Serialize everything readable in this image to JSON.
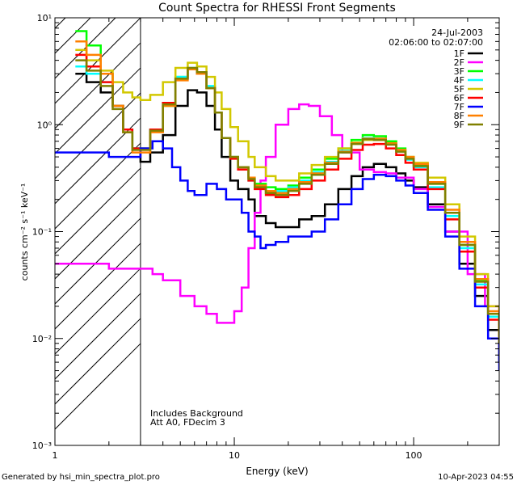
{
  "chart_data": {
    "type": "line",
    "title": "Count Spectra for RHESSI Front Segments",
    "xlabel": "Energy (keV)",
    "ylabel": "counts cm⁻² s⁻¹ keV⁻¹",
    "xscale": "log",
    "yscale": "log",
    "xlim": [
      1,
      300
    ],
    "ylim": [
      0.001,
      10
    ],
    "x_tick_labels": [
      "1",
      "10",
      "100"
    ],
    "y_tick_labels": [
      "10⁻³",
      "10⁻²",
      "10⁻¹",
      "10⁰",
      "10¹"
    ],
    "shaded_region": {
      "from": 1,
      "to": 3,
      "style": "diagonal hatch"
    },
    "vertical_line_x": 3,
    "date": "24-Jul-2003",
    "time_range": "02:06:00 to 02:07:00",
    "legend_position": "top-right",
    "annotations": [
      "Includes Background",
      "Att A0, FDecim 3"
    ],
    "series": [
      {
        "name": "1F",
        "color": "#000000",
        "x": [
          1.3,
          1.5,
          1.8,
          2.1,
          2.4,
          2.7,
          3.0,
          3.4,
          4.0,
          4.7,
          5.5,
          6.2,
          7.0,
          7.8,
          8.5,
          9.5,
          10.5,
          12,
          13,
          15,
          17,
          20,
          23,
          27,
          32,
          38,
          45,
          52,
          60,
          70,
          80,
          90,
          100,
          120,
          150,
          180,
          220,
          260,
          300
        ],
        "y": [
          3.0,
          2.5,
          2.0,
          1.5,
          0.9,
          0.6,
          0.45,
          0.55,
          0.8,
          1.5,
          2.1,
          2.0,
          1.5,
          0.9,
          0.5,
          0.3,
          0.25,
          0.2,
          0.14,
          0.12,
          0.11,
          0.11,
          0.13,
          0.14,
          0.18,
          0.25,
          0.33,
          0.4,
          0.43,
          0.4,
          0.35,
          0.3,
          0.26,
          0.18,
          0.1,
          0.05,
          0.025,
          0.012,
          0.006
        ]
      },
      {
        "name": "2F",
        "color": "#ff00ff",
        "x": [
          1.0,
          1.5,
          2.0,
          2.5,
          3.0,
          3.5,
          4.0,
          5.0,
          6.0,
          7.0,
          8.0,
          9.0,
          10.0,
          11.0,
          12.0,
          13.0,
          14.0,
          15.0,
          17.0,
          20.0,
          23.0,
          26.0,
          30.0,
          35.0,
          40.0,
          50.0,
          60.0,
          70.0,
          80.0,
          100.0,
          120.0,
          150.0,
          200.0,
          250.0,
          300.0
        ],
        "y": [
          0.05,
          0.05,
          0.045,
          0.045,
          0.045,
          0.04,
          0.035,
          0.025,
          0.02,
          0.017,
          0.014,
          0.014,
          0.018,
          0.03,
          0.07,
          0.15,
          0.3,
          0.5,
          1.0,
          1.4,
          1.55,
          1.5,
          1.2,
          0.8,
          0.55,
          0.38,
          0.36,
          0.35,
          0.32,
          0.25,
          0.17,
          0.1,
          0.04,
          0.02,
          0.012
        ]
      },
      {
        "name": "3F",
        "color": "#00ff00",
        "x": [
          1.3,
          1.5,
          1.8,
          2.1,
          2.4,
          2.7,
          3.0,
          3.4,
          4.0,
          4.7,
          5.5,
          6.2,
          7.0,
          7.8,
          8.5,
          9.5,
          10.5,
          12,
          13,
          15,
          17,
          20,
          23,
          27,
          32,
          38,
          45,
          52,
          60,
          70,
          80,
          90,
          100,
          120,
          150,
          180,
          220,
          260,
          300
        ],
        "y": [
          7.5,
          5.5,
          3.0,
          1.5,
          0.9,
          0.6,
          0.6,
          0.9,
          1.5,
          2.8,
          3.3,
          3.0,
          2.2,
          1.3,
          0.75,
          0.5,
          0.4,
          0.32,
          0.28,
          0.26,
          0.25,
          0.27,
          0.32,
          0.38,
          0.48,
          0.6,
          0.72,
          0.8,
          0.78,
          0.7,
          0.6,
          0.5,
          0.42,
          0.28,
          0.15,
          0.075,
          0.035,
          0.017,
          0.009
        ]
      },
      {
        "name": "4F",
        "color": "#00ffff",
        "x": [
          1.3,
          1.5,
          1.8,
          2.1,
          2.4,
          2.7,
          3.0,
          3.4,
          4.0,
          4.7,
          5.5,
          6.2,
          7.0,
          7.8,
          8.5,
          9.5,
          10.5,
          12,
          13,
          15,
          17,
          20,
          23,
          27,
          32,
          38,
          45,
          52,
          60,
          70,
          80,
          90,
          100,
          120,
          150,
          180,
          220,
          260,
          300
        ],
        "y": [
          3.5,
          3.0,
          2.5,
          1.5,
          0.9,
          0.6,
          0.6,
          0.9,
          1.6,
          2.8,
          3.4,
          3.1,
          2.3,
          1.3,
          0.75,
          0.5,
          0.4,
          0.3,
          0.26,
          0.24,
          0.24,
          0.26,
          0.3,
          0.36,
          0.45,
          0.57,
          0.68,
          0.75,
          0.74,
          0.66,
          0.56,
          0.47,
          0.4,
          0.26,
          0.14,
          0.07,
          0.032,
          0.016,
          0.008
        ]
      },
      {
        "name": "5F",
        "color": "#d2c800",
        "x": [
          1.3,
          1.5,
          1.8,
          2.1,
          2.4,
          2.7,
          3.0,
          3.4,
          4.0,
          4.7,
          5.5,
          6.2,
          7.0,
          7.8,
          8.5,
          9.5,
          10.5,
          12,
          13,
          15,
          17,
          20,
          23,
          27,
          32,
          38,
          45,
          52,
          60,
          70,
          80,
          90,
          100,
          120,
          150,
          180,
          220,
          260,
          300
        ],
        "y": [
          5.0,
          4.0,
          3.2,
          2.5,
          2.0,
          1.8,
          1.7,
          1.9,
          2.5,
          3.4,
          3.8,
          3.5,
          2.8,
          2.0,
          1.4,
          0.95,
          0.7,
          0.5,
          0.4,
          0.33,
          0.3,
          0.3,
          0.35,
          0.42,
          0.5,
          0.6,
          0.68,
          0.72,
          0.72,
          0.66,
          0.58,
          0.5,
          0.44,
          0.32,
          0.18,
          0.09,
          0.04,
          0.02,
          0.01
        ]
      },
      {
        "name": "6F",
        "color": "#ff0000",
        "x": [
          1.3,
          1.5,
          1.8,
          2.1,
          2.4,
          2.7,
          3.0,
          3.4,
          4.0,
          4.7,
          5.5,
          6.2,
          7.0,
          7.8,
          8.5,
          9.5,
          10.5,
          12,
          13,
          15,
          17,
          20,
          23,
          27,
          32,
          38,
          45,
          52,
          60,
          70,
          80,
          90,
          100,
          120,
          150,
          180,
          220,
          260,
          300
        ],
        "y": [
          4.5,
          3.5,
          2.5,
          1.5,
          0.9,
          0.6,
          0.6,
          0.9,
          1.6,
          2.7,
          3.3,
          3.0,
          2.2,
          1.3,
          0.75,
          0.48,
          0.38,
          0.3,
          0.25,
          0.22,
          0.21,
          0.22,
          0.25,
          0.3,
          0.38,
          0.48,
          0.58,
          0.65,
          0.66,
          0.6,
          0.52,
          0.44,
          0.38,
          0.25,
          0.13,
          0.065,
          0.03,
          0.015,
          0.008
        ]
      },
      {
        "name": "7F",
        "color": "#0000ff",
        "x": [
          1.0,
          1.5,
          2.0,
          2.5,
          3.0,
          3.5,
          4.0,
          4.5,
          5.0,
          5.5,
          6.0,
          7.0,
          8.0,
          9.0,
          10.0,
          11.0,
          12.0,
          13.0,
          14.0,
          15.0,
          17.0,
          20.0,
          23.0,
          27.0,
          32.0,
          38.0,
          45.0,
          52.0,
          60.0,
          70.0,
          80.0,
          90.0,
          100.0,
          120.0,
          150.0,
          180.0,
          220.0,
          260.0,
          300.0
        ],
        "y": [
          0.55,
          0.55,
          0.5,
          0.5,
          0.6,
          0.7,
          0.6,
          0.4,
          0.3,
          0.24,
          0.22,
          0.28,
          0.25,
          0.2,
          0.2,
          0.15,
          0.1,
          0.09,
          0.07,
          0.075,
          0.08,
          0.09,
          0.09,
          0.1,
          0.13,
          0.18,
          0.25,
          0.31,
          0.34,
          0.33,
          0.3,
          0.27,
          0.23,
          0.16,
          0.09,
          0.045,
          0.02,
          0.01,
          0.005
        ]
      },
      {
        "name": "8F",
        "color": "#ff8000",
        "x": [
          1.3,
          1.5,
          1.8,
          2.1,
          2.4,
          2.7,
          3.0,
          3.4,
          4.0,
          4.7,
          5.5,
          6.2,
          7.0,
          7.8,
          8.5,
          9.5,
          10.5,
          12,
          13,
          15,
          17,
          20,
          23,
          27,
          32,
          38,
          45,
          52,
          60,
          70,
          80,
          90,
          100,
          120,
          150,
          180,
          220,
          260,
          300
        ],
        "y": [
          6.0,
          4.5,
          3.0,
          1.5,
          0.85,
          0.55,
          0.55,
          0.85,
          1.5,
          2.6,
          3.3,
          3.0,
          2.2,
          1.3,
          0.75,
          0.5,
          0.4,
          0.32,
          0.27,
          0.24,
          0.23,
          0.25,
          0.29,
          0.35,
          0.44,
          0.56,
          0.67,
          0.74,
          0.74,
          0.67,
          0.58,
          0.5,
          0.43,
          0.29,
          0.16,
          0.08,
          0.036,
          0.018,
          0.009
        ]
      },
      {
        "name": "9F",
        "color": "#808000",
        "x": [
          1.3,
          1.5,
          1.8,
          2.1,
          2.4,
          2.7,
          3.0,
          3.4,
          4.0,
          4.7,
          5.5,
          6.2,
          7.0,
          7.8,
          8.5,
          9.5,
          10.5,
          12,
          13,
          15,
          17,
          20,
          23,
          27,
          32,
          38,
          45,
          52,
          60,
          70,
          80,
          90,
          100,
          120,
          150,
          180,
          220,
          260,
          300
        ],
        "y": [
          4.0,
          3.2,
          2.3,
          1.4,
          0.85,
          0.58,
          0.58,
          0.88,
          1.55,
          2.7,
          3.4,
          3.1,
          2.2,
          1.3,
          0.75,
          0.5,
          0.4,
          0.31,
          0.26,
          0.23,
          0.22,
          0.24,
          0.28,
          0.34,
          0.43,
          0.55,
          0.66,
          0.73,
          0.72,
          0.65,
          0.56,
          0.48,
          0.41,
          0.28,
          0.15,
          0.075,
          0.034,
          0.017,
          0.009
        ]
      }
    ]
  },
  "footer": {
    "generated_by": "Generated by hsi_min_spectra_plot.pro",
    "timestamp": "10-Apr-2023 04:55"
  }
}
